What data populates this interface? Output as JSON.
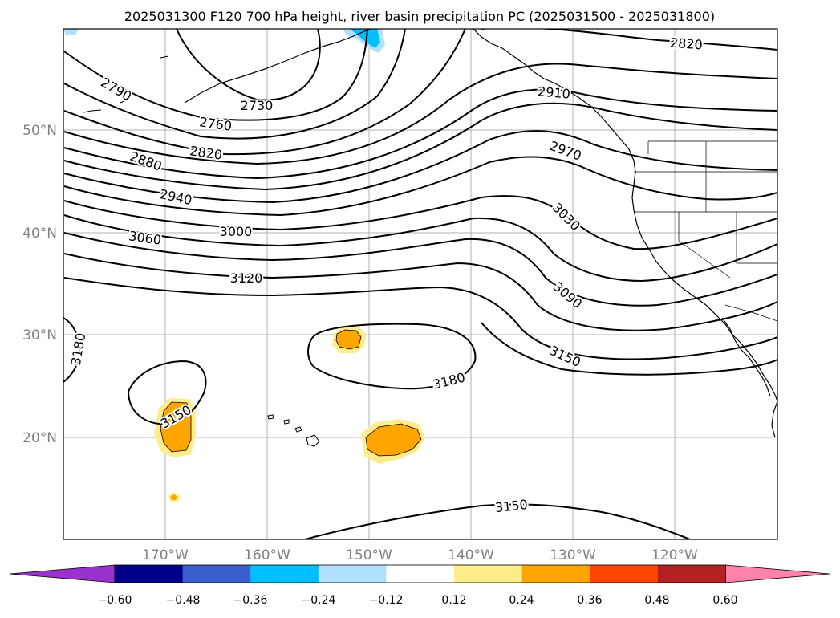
{
  "title": "2025031300 F120 700 hPa height, river basin precipitation PC (2025031500 - 2025031800)",
  "lat_labels": [
    "50°N",
    "40°N",
    "30°N",
    "20°N"
  ],
  "lon_labels": [
    "170°W",
    "160°W",
    "150°W",
    "140°W",
    "130°W",
    "120°W"
  ],
  "contour_labels": [
    "2820",
    "2910",
    "2730",
    "2760",
    "2790",
    "2820",
    "2880",
    "2940",
    "2970",
    "3000",
    "3030",
    "3060",
    "3090",
    "3120",
    "3150",
    "3180",
    "3180",
    "3150",
    "3150"
  ],
  "colorbar": {
    "ticks": [
      "−0.60",
      "−0.48",
      "−0.36",
      "−0.24",
      "−0.12",
      "0.12",
      "0.24",
      "0.36",
      "0.48",
      "0.60"
    ],
    "colors": [
      "#9932cc",
      "#00008b",
      "#3a5fcd",
      "#00bfff",
      "#b0e2ff",
      "#ffffff",
      "#ffec8b",
      "#ffa500",
      "#ff4500",
      "#b22222",
      "#ff82ab"
    ]
  },
  "colors": {
    "contour": "#000000",
    "grid": "#b0b0b0",
    "axis_label": "#808080",
    "pos_low": "#ffec8b",
    "pos_mid": "#ffa500",
    "neg_mid": "#00bfff",
    "neg_low": "#b0e2ff"
  }
}
